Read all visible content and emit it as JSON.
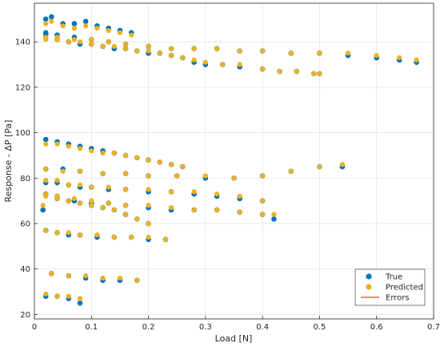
{
  "chart_data": {
    "type": "scatter",
    "xlabel": "Load [N]",
    "ylabel": "Response - ΔP [Pa]",
    "xlim": [
      0,
      0.7
    ],
    "ylim": [
      18,
      157
    ],
    "xticks": [
      0,
      0.1,
      0.2,
      0.3,
      0.4,
      0.5,
      0.6,
      0.7
    ],
    "xtick_labels": [
      "0",
      "0.1",
      "0.2",
      "0.3",
      "0.4",
      "0.5",
      "0.6",
      "0.7"
    ],
    "yticks": [
      20,
      40,
      60,
      80,
      100,
      120,
      140
    ],
    "ytick_labels": [
      "20",
      "40",
      "60",
      "80",
      "100",
      "120",
      "140"
    ],
    "grid": true,
    "legend_position": "bottom-right",
    "legend": [
      "True",
      "Predicted",
      "Errors"
    ],
    "colors": {
      "true": "#0072BD",
      "predicted": "#EDB120",
      "errors": "#D95319"
    },
    "series": [
      {
        "name": "True",
        "x": [
          0.02,
          0.03,
          0.05,
          0.07,
          0.09,
          0.11,
          0.13,
          0.15,
          0.17,
          0.02,
          0.04,
          0.06,
          0.08,
          0.1,
          0.12,
          0.14,
          0.16,
          0.18,
          0.2,
          0.22,
          0.24,
          0.26,
          0.28,
          0.3,
          0.33,
          0.36,
          0.4,
          0.43,
          0.46,
          0.49,
          0.5,
          0.02,
          0.04,
          0.07,
          0.1,
          0.13,
          0.16,
          0.2,
          0.24,
          0.28,
          0.32,
          0.36,
          0.4,
          0.45,
          0.5,
          0.55,
          0.6,
          0.64,
          0.67,
          0.02,
          0.04,
          0.06,
          0.08,
          0.1,
          0.12,
          0.14,
          0.16,
          0.18,
          0.2,
          0.22,
          0.24,
          0.26,
          0.02,
          0.05,
          0.08,
          0.12,
          0.16,
          0.2,
          0.25,
          0.3,
          0.35,
          0.4,
          0.45,
          0.5,
          0.54,
          0.02,
          0.04,
          0.06,
          0.08,
          0.1,
          0.13,
          0.16,
          0.2,
          0.24,
          0.28,
          0.32,
          0.36,
          0.4,
          0.02,
          0.04,
          0.07,
          0.1,
          0.13,
          0.16,
          0.2,
          0.24,
          0.28,
          0.32,
          0.36,
          0.4,
          0.42,
          0.015,
          0.02,
          0.04,
          0.06,
          0.08,
          0.1,
          0.12,
          0.14,
          0.16,
          0.18,
          0.2,
          0.02,
          0.04,
          0.06,
          0.08,
          0.11,
          0.14,
          0.17,
          0.2,
          0.23,
          0.03,
          0.06,
          0.09,
          0.12,
          0.15,
          0.18,
          0.02,
          0.04,
          0.06,
          0.08
        ],
        "y": [
          150,
          151,
          148,
          148,
          149,
          147,
          146,
          145,
          144,
          143,
          141,
          140,
          139,
          139,
          138,
          137,
          137,
          136,
          135,
          135,
          134,
          133,
          131,
          130,
          130,
          129,
          128,
          127,
          127,
          126,
          126,
          144,
          143,
          142,
          141,
          140,
          139,
          138,
          137,
          137,
          137,
          136,
          136,
          135,
          135,
          134,
          133,
          132,
          131,
          97,
          96,
          95,
          94,
          93,
          92,
          91,
          90,
          89,
          88,
          87,
          86,
          85,
          84,
          84,
          83,
          82,
          82,
          81,
          81,
          80,
          80,
          81,
          83,
          85,
          85,
          78,
          78,
          77,
          76,
          76,
          75,
          75,
          74,
          74,
          73,
          72,
          71,
          70,
          73,
          72,
          70,
          69,
          69,
          68,
          67,
          66,
          66,
          66,
          65,
          64,
          62,
          66,
          73,
          71,
          70,
          69,
          68,
          67,
          66,
          64,
          62,
          60,
          57,
          56,
          55,
          55,
          54,
          54,
          54,
          53,
          53,
          38,
          37,
          36,
          35,
          35,
          35,
          28,
          28,
          27,
          25
        ]
      },
      {
        "name": "Predicted",
        "x": [
          0.02,
          0.03,
          0.05,
          0.07,
          0.09,
          0.11,
          0.13,
          0.15,
          0.17,
          0.02,
          0.04,
          0.06,
          0.08,
          0.1,
          0.12,
          0.14,
          0.16,
          0.18,
          0.2,
          0.22,
          0.24,
          0.26,
          0.28,
          0.3,
          0.33,
          0.36,
          0.4,
          0.43,
          0.46,
          0.49,
          0.5,
          0.02,
          0.04,
          0.07,
          0.1,
          0.13,
          0.16,
          0.2,
          0.24,
          0.28,
          0.32,
          0.36,
          0.4,
          0.45,
          0.5,
          0.55,
          0.6,
          0.64,
          0.67,
          0.02,
          0.04,
          0.06,
          0.08,
          0.1,
          0.12,
          0.14,
          0.16,
          0.18,
          0.2,
          0.22,
          0.24,
          0.26,
          0.02,
          0.05,
          0.08,
          0.12,
          0.16,
          0.2,
          0.25,
          0.3,
          0.35,
          0.4,
          0.45,
          0.5,
          0.54,
          0.02,
          0.04,
          0.06,
          0.08,
          0.1,
          0.13,
          0.16,
          0.2,
          0.24,
          0.28,
          0.32,
          0.36,
          0.4,
          0.02,
          0.04,
          0.07,
          0.1,
          0.13,
          0.16,
          0.2,
          0.24,
          0.28,
          0.32,
          0.36,
          0.4,
          0.42,
          0.015,
          0.02,
          0.04,
          0.06,
          0.08,
          0.1,
          0.12,
          0.14,
          0.16,
          0.18,
          0.2,
          0.02,
          0.04,
          0.06,
          0.08,
          0.11,
          0.14,
          0.17,
          0.2,
          0.23,
          0.03,
          0.06,
          0.09,
          0.12,
          0.15,
          0.18,
          0.02,
          0.04,
          0.06,
          0.08
        ],
        "y": [
          148,
          149,
          147,
          146,
          147,
          146,
          145,
          144,
          143,
          141,
          141,
          140,
          140,
          139,
          138,
          138,
          137,
          136,
          136,
          135,
          134,
          133,
          132,
          131,
          130,
          130,
          128,
          127,
          127,
          126,
          126,
          142,
          142,
          141,
          141,
          140,
          139,
          138,
          137,
          137,
          137,
          136,
          136,
          135,
          135,
          135,
          134,
          133,
          132,
          95,
          95,
          94,
          93,
          92,
          91,
          91,
          90,
          89,
          88,
          87,
          86,
          85,
          84,
          83,
          83,
          82,
          82,
          81,
          81,
          81,
          80,
          81,
          83,
          85,
          86,
          79,
          79,
          77,
          77,
          76,
          76,
          75,
          75,
          74,
          74,
          73,
          72,
          70,
          73,
          72,
          71,
          70,
          69,
          68,
          68,
          67,
          66,
          66,
          65,
          64,
          64,
          68,
          72,
          71,
          70,
          69,
          68,
          67,
          66,
          64,
          62,
          60,
          57,
          56,
          56,
          55,
          55,
          54,
          54,
          54,
          53,
          38,
          37,
          37,
          36,
          36,
          35,
          29,
          28,
          28,
          27
        ]
      }
    ]
  }
}
